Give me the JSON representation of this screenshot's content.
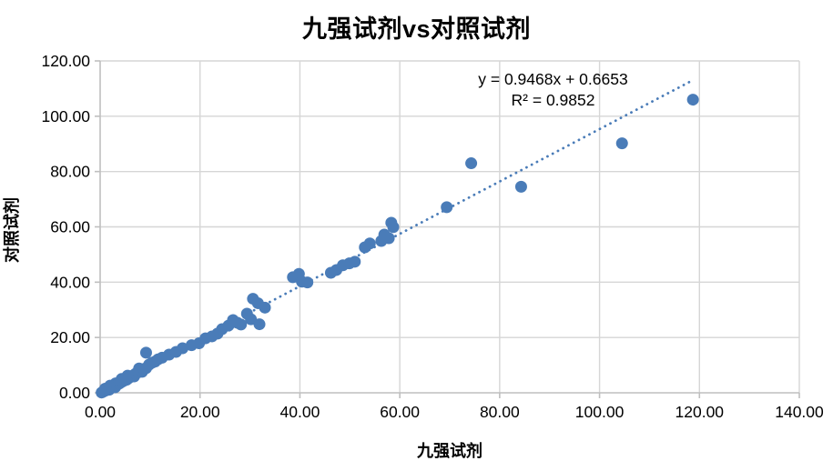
{
  "chart_data": {
    "type": "scatter",
    "title": "九强试剂vs对照试剂",
    "xlabel": "九强试剂",
    "ylabel": "对照试剂",
    "xlim": [
      0,
      140
    ],
    "ylim": [
      0,
      120
    ],
    "grid": true,
    "legend": false,
    "x_ticks": {
      "values": [
        0,
        20,
        40,
        60,
        80,
        100,
        120,
        140
      ],
      "labels": [
        "0.00",
        "20.00",
        "40.00",
        "60.00",
        "80.00",
        "100.00",
        "120.00",
        "140.00"
      ]
    },
    "y_ticks": {
      "values": [
        0,
        20,
        40,
        60,
        80,
        100,
        120
      ],
      "labels": [
        "0.00",
        "20.00",
        "40.00",
        "60.00",
        "80.00",
        "100.00",
        "120.00"
      ]
    },
    "series": [
      {
        "name": "九强试剂 vs 对照试剂",
        "marker": "circle",
        "marker_radius": 6.5,
        "color": "#4a7cb8",
        "points": [
          [
            0.3,
            0.1
          ],
          [
            0.6,
            0.4
          ],
          [
            0.9,
            0.7
          ],
          [
            1.0,
            1.5
          ],
          [
            1.2,
            0.9
          ],
          [
            1.5,
            1.3
          ],
          [
            1.8,
            1.1
          ],
          [
            2.0,
            2.6
          ],
          [
            2.1,
            1.7
          ],
          [
            2.4,
            2.1
          ],
          [
            2.8,
            2.4
          ],
          [
            3.0,
            2.0
          ],
          [
            3.1,
            3.4
          ],
          [
            3.4,
            2.9
          ],
          [
            3.8,
            3.3
          ],
          [
            4.1,
            3.7
          ],
          [
            4.3,
            5.0
          ],
          [
            4.5,
            4.1
          ],
          [
            4.9,
            4.5
          ],
          [
            5.3,
            4.7
          ],
          [
            5.5,
            6.2
          ],
          [
            5.7,
            5.3
          ],
          [
            6.1,
            5.8
          ],
          [
            6.6,
            6.3
          ],
          [
            6.8,
            5.9
          ],
          [
            7.1,
            6.9
          ],
          [
            7.6,
            7.4
          ],
          [
            7.8,
            8.8
          ],
          [
            8.1,
            8.0
          ],
          [
            8.4,
            7.6
          ],
          [
            8.7,
            8.6
          ],
          [
            9.2,
            8.9
          ],
          [
            9.2,
            14.5
          ],
          [
            9.8,
            10.2
          ],
          [
            10.4,
            10.9
          ],
          [
            11.0,
            11.3
          ],
          [
            11.6,
            12.1
          ],
          [
            12.4,
            12.7
          ],
          [
            13.8,
            13.8
          ],
          [
            15.2,
            14.8
          ],
          [
            16.5,
            16.1
          ],
          [
            18.3,
            17.2
          ],
          [
            19.8,
            17.9
          ],
          [
            21.1,
            19.7
          ],
          [
            22.4,
            20.4
          ],
          [
            23.5,
            21.4
          ],
          [
            24.4,
            23.0
          ],
          [
            25.7,
            24.3
          ],
          [
            26.6,
            26.3
          ],
          [
            27.5,
            25.3
          ],
          [
            28.2,
            24.7
          ],
          [
            29.4,
            28.6
          ],
          [
            30.2,
            26.6
          ],
          [
            30.6,
            34.0
          ],
          [
            31.6,
            32.4
          ],
          [
            31.9,
            24.8
          ],
          [
            33.0,
            30.8
          ],
          [
            38.6,
            41.8
          ],
          [
            39.8,
            43.0
          ],
          [
            40.4,
            40.2
          ],
          [
            41.5,
            39.9
          ],
          [
            46.2,
            43.4
          ],
          [
            47.3,
            44.4
          ],
          [
            48.6,
            46.1
          ],
          [
            49.9,
            46.8
          ],
          [
            51.0,
            47.4
          ],
          [
            53.0,
            52.6
          ],
          [
            54.0,
            54.0
          ],
          [
            56.3,
            54.9
          ],
          [
            56.9,
            57.2
          ],
          [
            57.8,
            55.9
          ],
          [
            58.3,
            61.5
          ],
          [
            58.7,
            59.9
          ],
          [
            69.4,
            67.1
          ],
          [
            74.3,
            83.0
          ],
          [
            84.3,
            74.5
          ],
          [
            104.5,
            90.2
          ],
          [
            118.7,
            106.0
          ]
        ]
      }
    ],
    "trendline": {
      "type": "linear",
      "slope": 0.9468,
      "intercept": 0.6653,
      "x_range": [
        0.4,
        118.7
      ],
      "style": "dotted",
      "color": "#4a7cb8"
    },
    "annotation": {
      "equation": "y = 0.9468x + 0.6653",
      "r_squared": "R² = 0.9852"
    },
    "colors": {
      "grid": "#d6d6d6",
      "axis": "#bfbfbf",
      "text": "#000000",
      "background": "#ffffff"
    }
  }
}
